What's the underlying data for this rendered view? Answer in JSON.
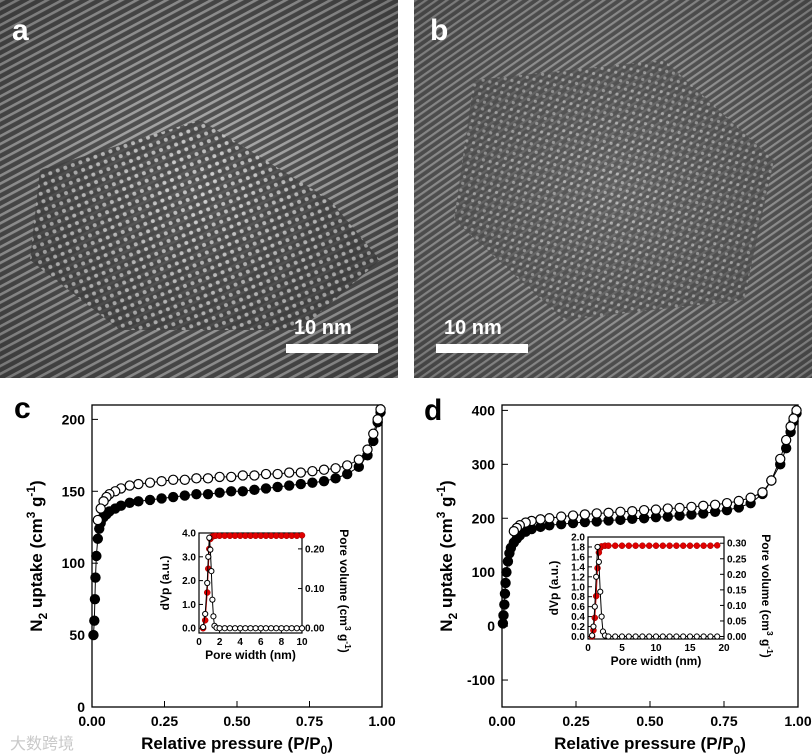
{
  "panels": {
    "a": {
      "letter": "a",
      "scalebar": "10 nm"
    },
    "b": {
      "letter": "b",
      "scalebar": "10 nm"
    },
    "c": {
      "letter": "c"
    },
    "d": {
      "letter": "d"
    }
  },
  "watermark": "大数跨境",
  "chart_data": [
    {
      "panel": "c",
      "type": "scatter",
      "xlabel": "Relative pressure (P/P0)",
      "ylabel": "N2 uptake (cm3 g-1)",
      "xlim": [
        0,
        1
      ],
      "ylim": [
        0,
        210
      ],
      "xticks": [
        "0.00",
        "0.25",
        "0.50",
        "0.75",
        "1.00"
      ],
      "yticks": [
        "0",
        "50",
        "100",
        "150",
        "200"
      ],
      "series": [
        {
          "x": [
            0.005,
            0.008,
            0.01,
            0.012,
            0.015,
            0.02,
            0.025,
            0.03,
            0.04,
            0.05,
            0.06,
            0.08,
            0.1,
            0.13,
            0.16,
            0.2,
            0.24,
            0.28,
            0.32,
            0.36,
            0.4,
            0.44,
            0.48,
            0.52,
            0.56,
            0.6,
            0.64,
            0.68,
            0.72,
            0.76,
            0.8,
            0.84,
            0.88,
            0.92,
            0.95,
            0.97,
            0.985,
            0.995
          ],
          "y": [
            50,
            60,
            75,
            90,
            105,
            117,
            124,
            128,
            132,
            134,
            136,
            138,
            140,
            142,
            143,
            144,
            145,
            146,
            147,
            148,
            148,
            149,
            150,
            150,
            151,
            152,
            153,
            154,
            155,
            156,
            157,
            159,
            162,
            167,
            175,
            185,
            198,
            205
          ]
        },
        {
          "x": [
            0.995,
            0.985,
            0.97,
            0.95,
            0.92,
            0.88,
            0.84,
            0.8,
            0.76,
            0.72,
            0.68,
            0.64,
            0.6,
            0.56,
            0.52,
            0.48,
            0.44,
            0.4,
            0.36,
            0.32,
            0.28,
            0.24,
            0.2,
            0.16,
            0.13,
            0.1,
            0.08,
            0.06,
            0.05,
            0.04,
            0.03,
            0.02
          ],
          "y": [
            207,
            200,
            190,
            179,
            172,
            168,
            166,
            165,
            164,
            163,
            163,
            162,
            162,
            161,
            161,
            160,
            160,
            159,
            159,
            158,
            158,
            157,
            156,
            155,
            154,
            152,
            150,
            148,
            146,
            143,
            138,
            130
          ]
        }
      ],
      "inset": {
        "xlabel": "Pore width (nm)",
        "ylabel_left": "dVp (a.u.)",
        "ylabel_right": "Pore volume (cm3 g-1)",
        "xlim": [
          0,
          10
        ],
        "ylim_left": [
          -0.2,
          4.0
        ],
        "ylim_right": [
          -0.012,
          0.24
        ],
        "xticks": [
          "0",
          "2",
          "4",
          "6",
          "8",
          "10"
        ],
        "yticks_left": [
          "0.0",
          "1.0",
          "2.0",
          "3.0",
          "4.0"
        ],
        "yticks_right": [
          "0.00",
          "0.10",
          "0.20"
        ],
        "dVp_x": [
          0.4,
          0.6,
          0.8,
          0.9,
          1.0,
          1.1,
          1.2,
          1.3,
          1.4,
          1.5,
          1.7,
          2.0,
          2.5,
          3,
          3.5,
          4,
          4.5,
          5,
          5.5,
          6,
          6.5,
          7,
          7.5,
          8,
          8.5,
          9,
          9.5,
          10
        ],
        "dVp_y": [
          0.05,
          0.6,
          1.9,
          3.0,
          3.8,
          3.3,
          2.4,
          1.2,
          0.5,
          0.1,
          0.02,
          0.0,
          0.0,
          0.0,
          0.0,
          0.0,
          0.0,
          0.0,
          0.0,
          0.0,
          0.0,
          0.0,
          0.0,
          0.0,
          0.0,
          0.0,
          0.0,
          0.0
        ],
        "vol_x": [
          0.4,
          0.6,
          0.8,
          0.9,
          1.0,
          1.1,
          1.2,
          1.4,
          1.6,
          2,
          2.5,
          3,
          3.5,
          4,
          4.5,
          5,
          5.5,
          6,
          6.5,
          7,
          7.5,
          8,
          8.5,
          9,
          9.5,
          10
        ],
        "vol_y": [
          0.0,
          0.02,
          0.09,
          0.15,
          0.2,
          0.225,
          0.23,
          0.232,
          0.233,
          0.233,
          0.233,
          0.233,
          0.233,
          0.233,
          0.233,
          0.233,
          0.233,
          0.233,
          0.233,
          0.233,
          0.233,
          0.233,
          0.233,
          0.233,
          0.233,
          0.234
        ]
      }
    },
    {
      "panel": "d",
      "type": "scatter",
      "xlabel": "Relative pressure (P/P0)",
      "ylabel": "N2 uptake (cm3 g-1)",
      "xlim": [
        0,
        1
      ],
      "ylim": [
        -150,
        410
      ],
      "xticks": [
        "0.00",
        "0.25",
        "0.50",
        "0.75",
        "1.00"
      ],
      "yticks": [
        "-100",
        "0",
        "100",
        "200",
        "300",
        "400"
      ],
      "series": [
        {
          "x": [
            0.003,
            0.005,
            0.008,
            0.01,
            0.012,
            0.015,
            0.02,
            0.025,
            0.03,
            0.04,
            0.05,
            0.06,
            0.08,
            0.1,
            0.13,
            0.16,
            0.2,
            0.24,
            0.28,
            0.32,
            0.36,
            0.4,
            0.44,
            0.48,
            0.52,
            0.56,
            0.6,
            0.64,
            0.68,
            0.72,
            0.76,
            0.8,
            0.84,
            0.88,
            0.91,
            0.94,
            0.96,
            0.975,
            0.985,
            0.995
          ],
          "y": [
            5,
            20,
            40,
            60,
            80,
            100,
            120,
            135,
            145,
            155,
            162,
            168,
            175,
            180,
            184,
            187,
            189,
            191,
            193,
            194,
            196,
            197,
            199,
            200,
            202,
            203,
            205,
            207,
            209,
            212,
            215,
            220,
            228,
            245,
            270,
            300,
            330,
            360,
            380,
            395
          ]
        },
        {
          "x": [
            0.995,
            0.985,
            0.975,
            0.96,
            0.94,
            0.91,
            0.88,
            0.84,
            0.8,
            0.76,
            0.72,
            0.68,
            0.64,
            0.6,
            0.56,
            0.52,
            0.48,
            0.44,
            0.4,
            0.36,
            0.32,
            0.28,
            0.24,
            0.2,
            0.16,
            0.13,
            0.1,
            0.08,
            0.06,
            0.05,
            0.04
          ],
          "y": [
            400,
            385,
            370,
            345,
            310,
            270,
            248,
            238,
            232,
            228,
            225,
            223,
            221,
            219,
            218,
            216,
            215,
            213,
            212,
            210,
            209,
            207,
            205,
            203,
            200,
            198,
            195,
            192,
            187,
            182,
            176
          ]
        }
      ],
      "inset": {
        "xlabel": "Pore width (nm)",
        "ylabel_left": "dVp (a.u.)",
        "ylabel_right": "Pore volume (cm3 g-1)",
        "xlim": [
          0,
          20
        ],
        "ylim_left": [
          -0.05,
          2.0
        ],
        "ylim_right": [
          -0.008,
          0.32
        ],
        "xticks": [
          "0",
          "5",
          "10",
          "15",
          "20"
        ],
        "yticks_left": [
          "0.0",
          "0.2",
          "0.4",
          "0.6",
          "0.8",
          "1.0",
          "1.2",
          "1.4",
          "1.6",
          "1.8",
          "2.0"
        ],
        "yticks_right": [
          "0.00",
          "0.05",
          "0.10",
          "0.15",
          "0.20",
          "0.25",
          "0.30"
        ],
        "dVp_x": [
          0.6,
          0.8,
          1.0,
          1.2,
          1.4,
          1.6,
          1.8,
          2.0,
          2.2,
          2.5,
          3,
          4,
          5,
          6,
          7,
          8,
          9,
          10,
          11,
          12,
          13,
          14,
          15,
          16,
          17,
          18,
          19
        ],
        "dVp_y": [
          0.02,
          0.2,
          0.6,
          1.2,
          1.8,
          1.5,
          0.9,
          0.4,
          0.1,
          0.02,
          0.0,
          0.0,
          0.0,
          0.0,
          0.0,
          0.0,
          0.0,
          0.0,
          0.0,
          0.0,
          0.0,
          0.0,
          0.0,
          0.0,
          0.0,
          0.0,
          0.0
        ],
        "vol_x": [
          0.6,
          0.8,
          1.0,
          1.2,
          1.4,
          1.6,
          1.8,
          2.0,
          2.5,
          3,
          4,
          5,
          6,
          7,
          8,
          9,
          10,
          11,
          12,
          13,
          14,
          15,
          16,
          17,
          18,
          19
        ],
        "vol_y": [
          0.0,
          0.02,
          0.06,
          0.13,
          0.22,
          0.27,
          0.285,
          0.29,
          0.292,
          0.292,
          0.292,
          0.292,
          0.292,
          0.292,
          0.292,
          0.292,
          0.292,
          0.292,
          0.292,
          0.292,
          0.292,
          0.292,
          0.292,
          0.292,
          0.292,
          0.293
        ]
      }
    }
  ]
}
